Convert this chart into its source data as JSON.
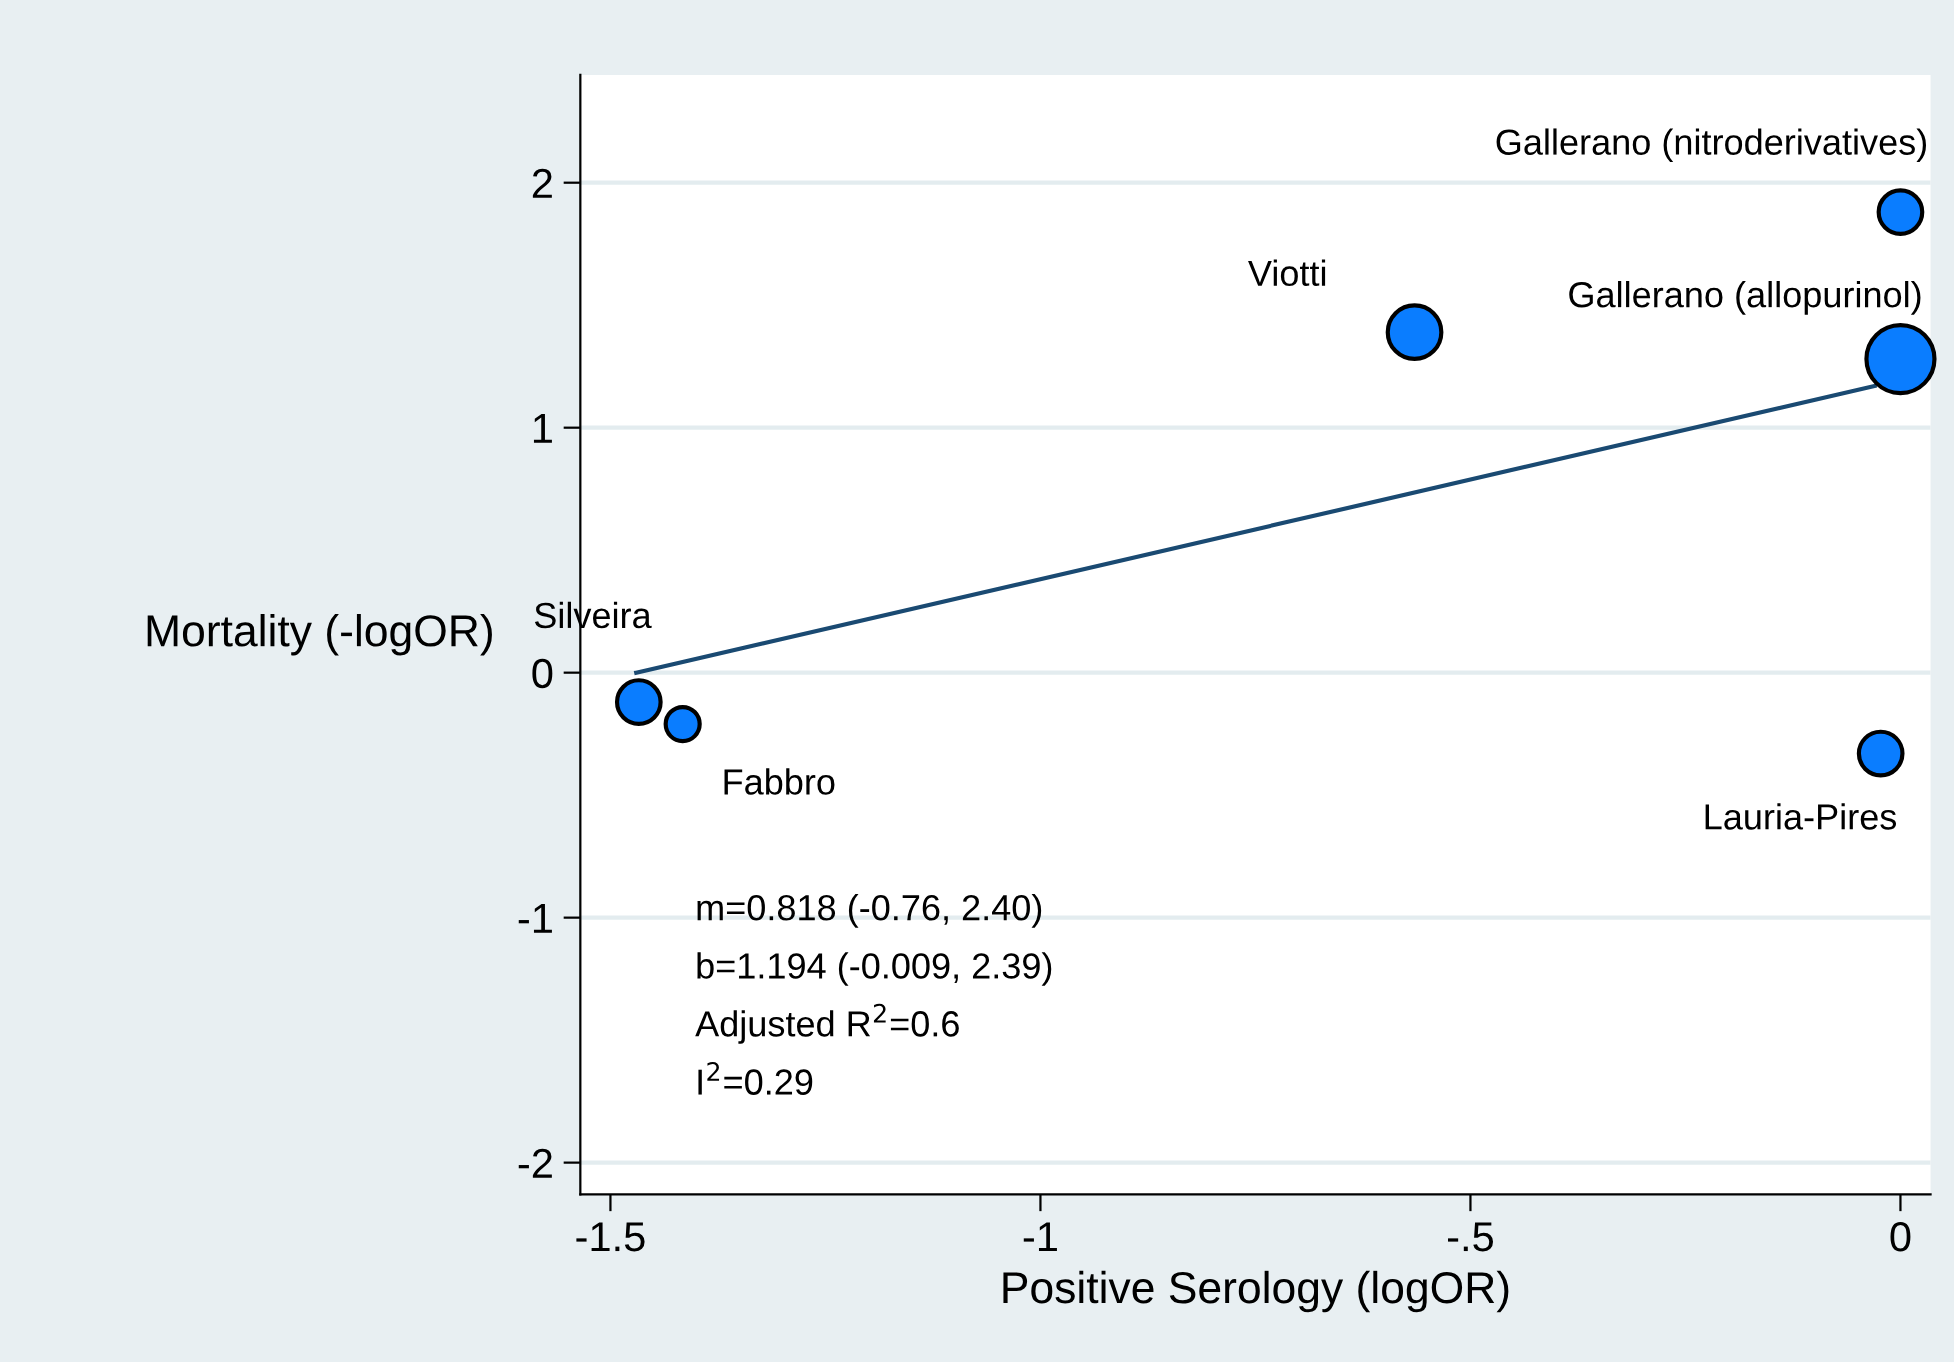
{
  "chart_data": {
    "type": "scatter",
    "xlabel": "Positive Serology (logOR)",
    "ylabel": "Mortality (-logOR)",
    "xlim": [
      -1.535,
      0.035
    ],
    "ylim": [
      -2.13,
      2.44
    ],
    "xticks": [
      -1.5,
      -1,
      {
        "value": -0.5,
        "label": "-.5"
      },
      0
    ],
    "yticks": [
      -2,
      -1,
      0,
      1,
      2
    ],
    "grid": "y",
    "series": [
      {
        "marker": "circle",
        "color": "#0a7dff",
        "x": [
          -1.467,
          -1.416,
          -0.565,
          0.0,
          0.0,
          -0.023
        ],
        "values": [
          -0.12,
          -0.21,
          1.39,
          1.88,
          1.28,
          -0.33
        ],
        "sizes": [
          0.41,
          0.25,
          0.62,
          0.41,
          1,
          0.41
        ]
      },
      {
        "type": "line",
        "color": "#1a4a72",
        "x": [
          -1.47,
          -0.03
        ],
        "values": [
          0.0,
          1.17
        ]
      }
    ],
    "annotations": [
      {
        "text": "Silveira",
        "x": -1.467,
        "y": -0.12
      },
      {
        "text": "Fabbro",
        "x": -1.416,
        "y": -0.21
      },
      {
        "text": "Viotti",
        "x": -0.565,
        "y": 1.39
      },
      {
        "text": "Gallerano (nitroderivatives)",
        "x": 0.0,
        "y": 1.88
      },
      {
        "text": "Gallerano (allopurinol)",
        "x": 0.0,
        "y": 1.28
      },
      {
        "text": "Lauria-Pires",
        "x": -0.023,
        "y": -0.33
      },
      "m=0.818 (-0.76, 2.40)",
      "b=1.194 (-0.009, 2.39)",
      "Adjusted R$^{2}$=0.6",
      "I$^{2}$=0.29"
    ]
  }
}
